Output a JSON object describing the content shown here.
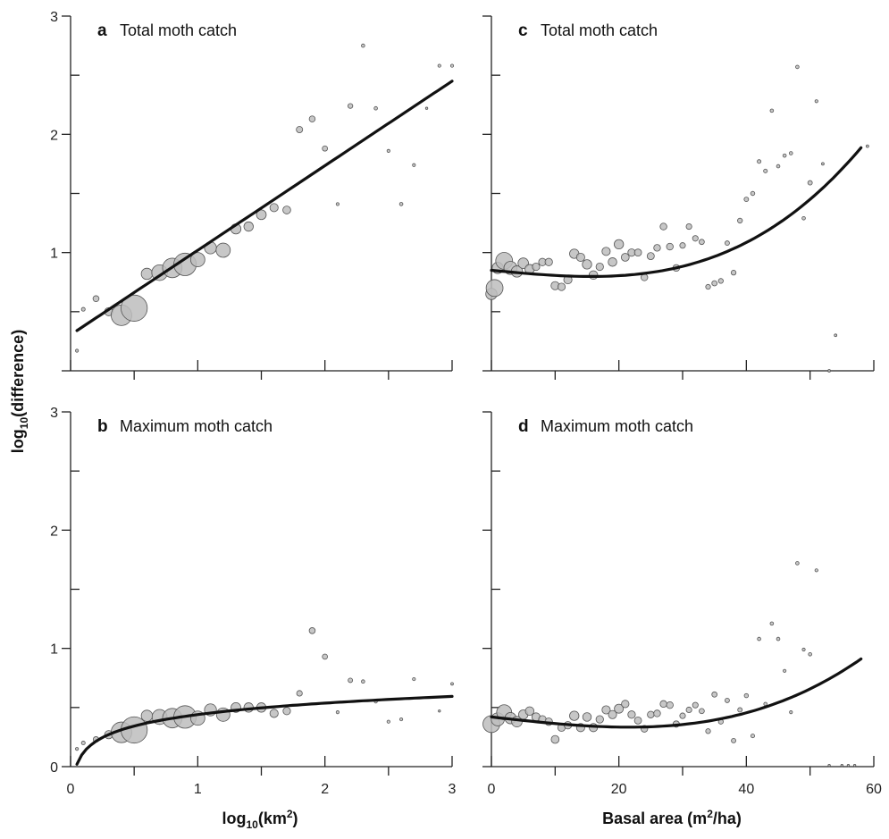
{
  "axes": {
    "y_title": "log",
    "y_title_sub": "10",
    "y_title_rest": "(difference)",
    "x_left_title": "log",
    "x_left_title_sub": "10",
    "x_left_title_rest": "(km",
    "x_left_title_sup": "2",
    "x_left_title_close": ")",
    "x_right_title": "Basal area (m",
    "x_right_title_sup": "2",
    "x_right_title_close": "/ha)"
  },
  "chart_data": [
    {
      "id": "a",
      "type": "scatter",
      "letter": "a",
      "title": "Total moth catch",
      "xlim": [
        0,
        3
      ],
      "ylim": [
        0,
        3
      ],
      "xticks": [
        0,
        1,
        2,
        3
      ],
      "yticks": [
        0,
        1,
        2,
        3
      ],
      "show_x_labels": false,
      "show_y_labels": true,
      "y_tick_labels": [
        "",
        "1",
        "2",
        "3"
      ],
      "fit": {
        "kind": "linear",
        "x0": 0.05,
        "x1": 3.0,
        "y0": 0.34,
        "y1": 2.45
      },
      "points": [
        {
          "x": 0.05,
          "y": 0.17,
          "s": 0.8
        },
        {
          "x": 0.1,
          "y": 0.52,
          "s": 1
        },
        {
          "x": 0.2,
          "y": 0.61,
          "s": 1.6
        },
        {
          "x": 0.3,
          "y": 0.5,
          "s": 2.2
        },
        {
          "x": 0.4,
          "y": 0.47,
          "s": 5.5
        },
        {
          "x": 0.5,
          "y": 0.53,
          "s": 7
        },
        {
          "x": 0.6,
          "y": 0.82,
          "s": 3
        },
        {
          "x": 0.7,
          "y": 0.83,
          "s": 4.2
        },
        {
          "x": 0.8,
          "y": 0.87,
          "s": 5.2
        },
        {
          "x": 0.9,
          "y": 0.9,
          "s": 6
        },
        {
          "x": 1.0,
          "y": 0.94,
          "s": 3.8
        },
        {
          "x": 1.1,
          "y": 1.04,
          "s": 3.2
        },
        {
          "x": 1.2,
          "y": 1.02,
          "s": 3.8
        },
        {
          "x": 1.3,
          "y": 1.2,
          "s": 2.7
        },
        {
          "x": 1.4,
          "y": 1.22,
          "s": 2.5
        },
        {
          "x": 1.5,
          "y": 1.32,
          "s": 2.6
        },
        {
          "x": 1.6,
          "y": 1.38,
          "s": 2.2
        },
        {
          "x": 1.7,
          "y": 1.36,
          "s": 2.1
        },
        {
          "x": 1.8,
          "y": 2.04,
          "s": 1.7
        },
        {
          "x": 1.9,
          "y": 2.13,
          "s": 1.6
        },
        {
          "x": 2.0,
          "y": 1.88,
          "s": 1.4
        },
        {
          "x": 2.1,
          "y": 1.41,
          "s": 0.8
        },
        {
          "x": 2.2,
          "y": 2.24,
          "s": 1.3
        },
        {
          "x": 2.3,
          "y": 2.75,
          "s": 0.9
        },
        {
          "x": 2.4,
          "y": 2.22,
          "s": 0.9
        },
        {
          "x": 2.5,
          "y": 1.86,
          "s": 0.8
        },
        {
          "x": 2.6,
          "y": 1.41,
          "s": 0.9
        },
        {
          "x": 2.7,
          "y": 1.74,
          "s": 0.8
        },
        {
          "x": 2.8,
          "y": 2.22,
          "s": 0.6
        },
        {
          "x": 2.9,
          "y": 2.58,
          "s": 0.8
        },
        {
          "x": 3.0,
          "y": 2.58,
          "s": 0.8
        }
      ]
    },
    {
      "id": "c",
      "type": "scatter",
      "letter": "c",
      "title": "Total moth catch",
      "xlim": [
        0,
        60
      ],
      "ylim": [
        0,
        3
      ],
      "xticks": [
        0,
        10,
        20,
        30,
        40,
        50,
        60
      ],
      "yticks": [
        0,
        1,
        2,
        3
      ],
      "show_x_labels": false,
      "show_y_labels": false,
      "fit": {
        "kind": "cubic",
        "x0": 0,
        "x1": 58,
        "coef": [
          0.85,
          -0.005,
          0,
          6.8e-06
        ]
      },
      "points": [
        {
          "x": 0,
          "y": 0.65,
          "s": 3
        },
        {
          "x": 0.5,
          "y": 0.7,
          "s": 4.5
        },
        {
          "x": 1,
          "y": 0.87,
          "s": 3
        },
        {
          "x": 2,
          "y": 0.93,
          "s": 4.5
        },
        {
          "x": 3,
          "y": 0.87,
          "s": 3.5
        },
        {
          "x": 4,
          "y": 0.84,
          "s": 3
        },
        {
          "x": 5,
          "y": 0.91,
          "s": 2.8
        },
        {
          "x": 6,
          "y": 0.86,
          "s": 2.5
        },
        {
          "x": 7,
          "y": 0.88,
          "s": 2
        },
        {
          "x": 8,
          "y": 0.92,
          "s": 2
        },
        {
          "x": 9,
          "y": 0.92,
          "s": 2
        },
        {
          "x": 10,
          "y": 0.72,
          "s": 2.2
        },
        {
          "x": 11,
          "y": 0.71,
          "s": 2
        },
        {
          "x": 12,
          "y": 0.77,
          "s": 2.2
        },
        {
          "x": 13,
          "y": 0.99,
          "s": 2.5
        },
        {
          "x": 14,
          "y": 0.96,
          "s": 2.2
        },
        {
          "x": 15,
          "y": 0.9,
          "s": 2.5
        },
        {
          "x": 16,
          "y": 0.81,
          "s": 2.3
        },
        {
          "x": 17,
          "y": 0.88,
          "s": 2
        },
        {
          "x": 18,
          "y": 1.01,
          "s": 2.2
        },
        {
          "x": 19,
          "y": 0.92,
          "s": 2.3
        },
        {
          "x": 20,
          "y": 1.07,
          "s": 2.5
        },
        {
          "x": 21,
          "y": 0.96,
          "s": 2.1
        },
        {
          "x": 22,
          "y": 1.0,
          "s": 2
        },
        {
          "x": 23,
          "y": 1.0,
          "s": 1.9
        },
        {
          "x": 24,
          "y": 0.79,
          "s": 1.8
        },
        {
          "x": 25,
          "y": 0.97,
          "s": 1.9
        },
        {
          "x": 26,
          "y": 1.04,
          "s": 1.8
        },
        {
          "x": 27,
          "y": 1.22,
          "s": 1.8
        },
        {
          "x": 28,
          "y": 1.05,
          "s": 1.8
        },
        {
          "x": 29,
          "y": 0.87,
          "s": 1.8
        },
        {
          "x": 30,
          "y": 1.06,
          "s": 1.5
        },
        {
          "x": 31,
          "y": 1.22,
          "s": 1.5
        },
        {
          "x": 32,
          "y": 1.12,
          "s": 1.5
        },
        {
          "x": 33,
          "y": 1.09,
          "s": 1.4
        },
        {
          "x": 34,
          "y": 0.71,
          "s": 1.3
        },
        {
          "x": 35,
          "y": 0.74,
          "s": 1.4
        },
        {
          "x": 36,
          "y": 0.76,
          "s": 1.3
        },
        {
          "x": 37,
          "y": 1.08,
          "s": 1.2
        },
        {
          "x": 38,
          "y": 0.83,
          "s": 1.3
        },
        {
          "x": 39,
          "y": 1.27,
          "s": 1.3
        },
        {
          "x": 40,
          "y": 1.45,
          "s": 1.2
        },
        {
          "x": 41,
          "y": 1.5,
          "s": 1.1
        },
        {
          "x": 42,
          "y": 1.77,
          "s": 1
        },
        {
          "x": 43,
          "y": 1.69,
          "s": 1
        },
        {
          "x": 44,
          "y": 2.2,
          "s": 0.9
        },
        {
          "x": 45,
          "y": 1.73,
          "s": 0.9
        },
        {
          "x": 46,
          "y": 1.82,
          "s": 0.9
        },
        {
          "x": 47,
          "y": 1.84,
          "s": 0.9
        },
        {
          "x": 48,
          "y": 2.57,
          "s": 0.9
        },
        {
          "x": 49,
          "y": 1.29,
          "s": 0.9
        },
        {
          "x": 50,
          "y": 1.59,
          "s": 1.2
        },
        {
          "x": 51,
          "y": 2.28,
          "s": 0.8
        },
        {
          "x": 52,
          "y": 1.75,
          "s": 0.7
        },
        {
          "x": 53,
          "y": 0.0,
          "s": 0.7
        },
        {
          "x": 54,
          "y": 0.3,
          "s": 0.7
        },
        {
          "x": 59,
          "y": 1.9,
          "s": 0.7
        }
      ]
    },
    {
      "id": "b",
      "type": "scatter",
      "letter": "b",
      "title": "Maximum moth catch",
      "xlim": [
        0,
        3
      ],
      "ylim": [
        0,
        3
      ],
      "xticks": [
        0,
        1,
        2,
        3
      ],
      "yticks": [
        0,
        1,
        2,
        3
      ],
      "show_x_labels": true,
      "show_y_labels": true,
      "x_tick_labels": [
        "0",
        "1",
        "2",
        "3"
      ],
      "y_tick_labels": [
        "0",
        "1",
        "2",
        "3"
      ],
      "fit": {
        "kind": "log",
        "x0": 0.05,
        "x1": 3.0,
        "a": 0.44,
        "b": 0.14
      },
      "points": [
        {
          "x": 0.05,
          "y": 0.15,
          "s": 0.8
        },
        {
          "x": 0.1,
          "y": 0.2,
          "s": 1
        },
        {
          "x": 0.2,
          "y": 0.23,
          "s": 1.5
        },
        {
          "x": 0.3,
          "y": 0.27,
          "s": 2.2
        },
        {
          "x": 0.4,
          "y": 0.29,
          "s": 5.5
        },
        {
          "x": 0.5,
          "y": 0.31,
          "s": 7
        },
        {
          "x": 0.6,
          "y": 0.43,
          "s": 3
        },
        {
          "x": 0.7,
          "y": 0.42,
          "s": 4
        },
        {
          "x": 0.8,
          "y": 0.41,
          "s": 5.2
        },
        {
          "x": 0.9,
          "y": 0.42,
          "s": 6
        },
        {
          "x": 1.0,
          "y": 0.41,
          "s": 3.8
        },
        {
          "x": 1.1,
          "y": 0.48,
          "s": 3.2
        },
        {
          "x": 1.2,
          "y": 0.44,
          "s": 3.6
        },
        {
          "x": 1.3,
          "y": 0.5,
          "s": 2.6
        },
        {
          "x": 1.4,
          "y": 0.5,
          "s": 2.5
        },
        {
          "x": 1.5,
          "y": 0.5,
          "s": 2.5
        },
        {
          "x": 1.6,
          "y": 0.45,
          "s": 2.2
        },
        {
          "x": 1.7,
          "y": 0.47,
          "s": 2
        },
        {
          "x": 1.8,
          "y": 0.62,
          "s": 1.5
        },
        {
          "x": 1.9,
          "y": 1.15,
          "s": 1.6
        },
        {
          "x": 2.0,
          "y": 0.93,
          "s": 1.4
        },
        {
          "x": 2.1,
          "y": 0.46,
          "s": 0.8
        },
        {
          "x": 2.2,
          "y": 0.73,
          "s": 1.2
        },
        {
          "x": 2.3,
          "y": 0.72,
          "s": 0.9
        },
        {
          "x": 2.4,
          "y": 0.55,
          "s": 0.8
        },
        {
          "x": 2.5,
          "y": 0.38,
          "s": 0.8
        },
        {
          "x": 2.6,
          "y": 0.4,
          "s": 0.8
        },
        {
          "x": 2.7,
          "y": 0.74,
          "s": 0.8
        },
        {
          "x": 2.9,
          "y": 0.47,
          "s": 0.6
        },
        {
          "x": 3.0,
          "y": 0.7,
          "s": 0.7
        }
      ]
    },
    {
      "id": "d",
      "type": "scatter",
      "letter": "d",
      "title": "Maximum moth catch",
      "xlim": [
        0,
        60
      ],
      "ylim": [
        0,
        3
      ],
      "xticks": [
        0,
        10,
        20,
        30,
        40,
        50,
        60
      ],
      "yticks": [
        0,
        1,
        2,
        3
      ],
      "show_x_labels": true,
      "show_y_labels": false,
      "x_tick_labels": [
        "0",
        "",
        "20",
        "",
        "40",
        "",
        "60"
      ],
      "fit": {
        "kind": "cubic",
        "x0": 0,
        "x1": 58,
        "coef": [
          0.42,
          -0.006,
          0,
          4.3e-06
        ]
      },
      "points": [
        {
          "x": 0,
          "y": 0.36,
          "s": 4.5
        },
        {
          "x": 1,
          "y": 0.4,
          "s": 3.5
        },
        {
          "x": 2,
          "y": 0.46,
          "s": 4
        },
        {
          "x": 3,
          "y": 0.41,
          "s": 3
        },
        {
          "x": 4,
          "y": 0.38,
          "s": 2.8
        },
        {
          "x": 5,
          "y": 0.44,
          "s": 2.5
        },
        {
          "x": 6,
          "y": 0.47,
          "s": 2.3
        },
        {
          "x": 7,
          "y": 0.42,
          "s": 2.2
        },
        {
          "x": 8,
          "y": 0.4,
          "s": 2
        },
        {
          "x": 9,
          "y": 0.38,
          "s": 2
        },
        {
          "x": 10,
          "y": 0.23,
          "s": 2.1
        },
        {
          "x": 11,
          "y": 0.33,
          "s": 2
        },
        {
          "x": 12,
          "y": 0.35,
          "s": 2
        },
        {
          "x": 13,
          "y": 0.43,
          "s": 2.5
        },
        {
          "x": 14,
          "y": 0.33,
          "s": 2.2
        },
        {
          "x": 15,
          "y": 0.42,
          "s": 2.3
        },
        {
          "x": 16,
          "y": 0.33,
          "s": 2.2
        },
        {
          "x": 17,
          "y": 0.4,
          "s": 2
        },
        {
          "x": 18,
          "y": 0.48,
          "s": 2.2
        },
        {
          "x": 19,
          "y": 0.44,
          "s": 2.2
        },
        {
          "x": 20,
          "y": 0.49,
          "s": 2.4
        },
        {
          "x": 21,
          "y": 0.53,
          "s": 2
        },
        {
          "x": 22,
          "y": 0.44,
          "s": 2
        },
        {
          "x": 23,
          "y": 0.39,
          "s": 1.9
        },
        {
          "x": 24,
          "y": 0.32,
          "s": 1.8
        },
        {
          "x": 25,
          "y": 0.44,
          "s": 1.8
        },
        {
          "x": 26,
          "y": 0.45,
          "s": 1.8
        },
        {
          "x": 27,
          "y": 0.53,
          "s": 1.8
        },
        {
          "x": 28,
          "y": 0.52,
          "s": 1.8
        },
        {
          "x": 29,
          "y": 0.36,
          "s": 1.7
        },
        {
          "x": 30,
          "y": 0.43,
          "s": 1.5
        },
        {
          "x": 31,
          "y": 0.48,
          "s": 1.5
        },
        {
          "x": 32,
          "y": 0.52,
          "s": 1.5
        },
        {
          "x": 33,
          "y": 0.47,
          "s": 1.4
        },
        {
          "x": 34,
          "y": 0.3,
          "s": 1.3
        },
        {
          "x": 35,
          "y": 0.61,
          "s": 1.4
        },
        {
          "x": 36,
          "y": 0.38,
          "s": 1.3
        },
        {
          "x": 37,
          "y": 0.56,
          "s": 1.2
        },
        {
          "x": 38,
          "y": 0.22,
          "s": 1.2
        },
        {
          "x": 39,
          "y": 0.48,
          "s": 1.2
        },
        {
          "x": 40,
          "y": 0.6,
          "s": 1.1
        },
        {
          "x": 41,
          "y": 0.26,
          "s": 1
        },
        {
          "x": 42,
          "y": 1.08,
          "s": 0.9
        },
        {
          "x": 43,
          "y": 0.53,
          "s": 0.9
        },
        {
          "x": 44,
          "y": 1.21,
          "s": 0.9
        },
        {
          "x": 45,
          "y": 1.08,
          "s": 0.9
        },
        {
          "x": 46,
          "y": 0.81,
          "s": 0.8
        },
        {
          "x": 47,
          "y": 0.46,
          "s": 0.8
        },
        {
          "x": 48,
          "y": 1.72,
          "s": 0.9
        },
        {
          "x": 49,
          "y": 0.99,
          "s": 0.8
        },
        {
          "x": 50,
          "y": 0.95,
          "s": 0.9
        },
        {
          "x": 51,
          "y": 1.66,
          "s": 0.8
        },
        {
          "x": 53,
          "y": 0.01,
          "s": 0.6
        },
        {
          "x": 55,
          "y": 0.01,
          "s": 0.6
        },
        {
          "x": 56,
          "y": 0.01,
          "s": 0.6
        },
        {
          "x": 57,
          "y": 0.01,
          "s": 0.6
        }
      ]
    }
  ]
}
